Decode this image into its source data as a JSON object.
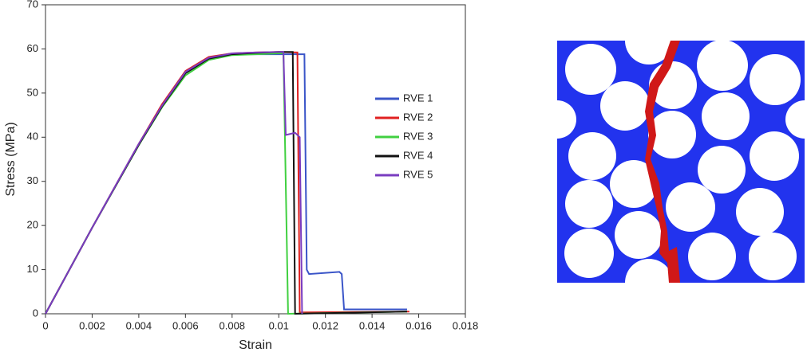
{
  "chart_data": {
    "type": "line",
    "x_label": "Strain",
    "y_label": "Stress (MPa)",
    "xlim": [
      0,
      0.018
    ],
    "ylim": [
      0,
      70
    ],
    "xticks": [
      0,
      0.002,
      0.004,
      0.006,
      0.008,
      0.01,
      0.012,
      0.014,
      0.016,
      0.018
    ],
    "yticks": [
      0,
      10,
      20,
      30,
      40,
      50,
      60,
      70
    ],
    "legend": "right",
    "series": [
      {
        "name": "RVE 1",
        "color": "#3a55c8",
        "x": [
          0,
          0.002,
          0.004,
          0.005,
          0.006,
          0.007,
          0.008,
          0.009,
          0.01,
          0.0108,
          0.0111,
          0.0112,
          0.0113,
          0.0126,
          0.0127,
          0.0128,
          0.0155
        ],
        "values": [
          0,
          19.5,
          38.5,
          47,
          54.5,
          57.8,
          58.8,
          58.8,
          58.8,
          58.8,
          58.8,
          10,
          9,
          9.5,
          9,
          1,
          1
        ]
      },
      {
        "name": "RVE 2",
        "color": "#e02020",
        "x": [
          0,
          0.002,
          0.004,
          0.005,
          0.006,
          0.007,
          0.008,
          0.009,
          0.01,
          0.0108,
          0.0109,
          0.0156
        ],
        "values": [
          0,
          19.5,
          38.5,
          47.5,
          55,
          58.2,
          59,
          59.2,
          59.3,
          59.2,
          0.3,
          0.5
        ]
      },
      {
        "name": "RVE 3",
        "color": "#40d040",
        "x": [
          0,
          0.002,
          0.004,
          0.005,
          0.006,
          0.007,
          0.008,
          0.009,
          0.01,
          0.0102,
          0.0104,
          0.0155
        ],
        "values": [
          0,
          19.5,
          38.2,
          46.8,
          54,
          57.5,
          58.6,
          58.8,
          59,
          59,
          0,
          0.5
        ]
      },
      {
        "name": "RVE 4",
        "color": "#111111",
        "x": [
          0,
          0.002,
          0.004,
          0.005,
          0.006,
          0.007,
          0.008,
          0.009,
          0.01,
          0.0106,
          0.0107,
          0.0155
        ],
        "values": [
          0,
          19.5,
          38.3,
          47,
          54.5,
          57.8,
          58.8,
          59.1,
          59.3,
          59.3,
          0,
          0.5
        ]
      },
      {
        "name": "RVE 5",
        "color": "#7a3cc0",
        "x": [
          0,
          0.002,
          0.004,
          0.005,
          0.006,
          0.007,
          0.008,
          0.009,
          0.01,
          0.0102,
          0.0103,
          0.0107,
          0.0109,
          0.011
        ],
        "values": [
          0,
          19.5,
          38.5,
          47.2,
          54.8,
          58,
          59,
          59.2,
          59.3,
          59.3,
          40.5,
          41,
          40,
          0
        ]
      }
    ]
  }
}
